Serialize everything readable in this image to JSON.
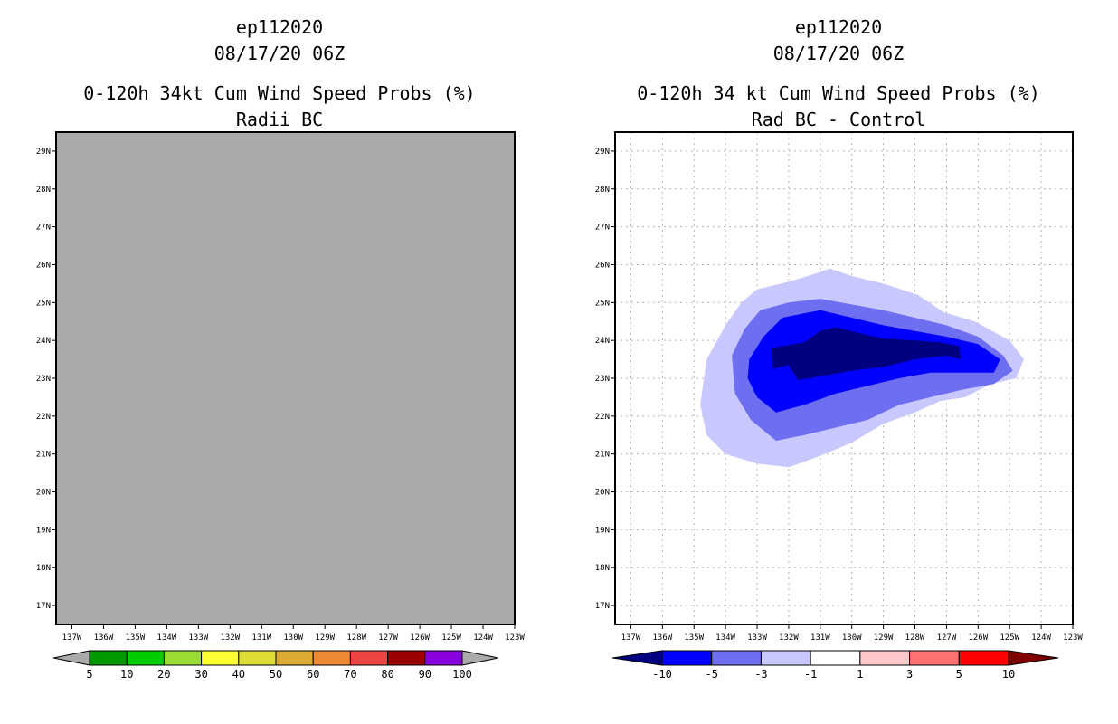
{
  "chart_data": [
    {
      "type": "heatmap",
      "storm_id": "ep112020",
      "datetime": "08/17/20 06Z",
      "title": "0-120h 34kt Cum Wind Speed Probs (%)",
      "subtitle": "Radii BC",
      "field_fill": "uniform grey (no data)",
      "field_color": "#aaaaaa",
      "x_ticks": [
        "137W",
        "136W",
        "135W",
        "134W",
        "133W",
        "132W",
        "131W",
        "130W",
        "129W",
        "128W",
        "127W",
        "126W",
        "125W",
        "124W",
        "123W"
      ],
      "y_ticks": [
        "17N",
        "18N",
        "19N",
        "20N",
        "21N",
        "22N",
        "23N",
        "24N",
        "25N",
        "26N",
        "27N",
        "28N",
        "29N"
      ],
      "xlim": [
        -137.5,
        -123
      ],
      "ylim": [
        16.5,
        29.5
      ],
      "grid": false,
      "colorbar": {
        "labels": [
          "5",
          "10",
          "20",
          "30",
          "40",
          "50",
          "60",
          "70",
          "80",
          "90",
          "100"
        ],
        "colors": [
          "#009900",
          "#00cc00",
          "#99dd33",
          "#ffff33",
          "#dddd33",
          "#ddaa33",
          "#ee8833",
          "#ee4444",
          "#990000",
          "#8800dd"
        ],
        "under_color": "#aaaaaa",
        "over_color": "#aaaaaa"
      }
    },
    {
      "type": "heatmap",
      "storm_id": "ep112020",
      "datetime": "08/17/20 06Z",
      "title": "0-120h 34 kt Cum Wind Speed Probs (%)",
      "subtitle": "Rad BC - Control",
      "x_ticks": [
        "137W",
        "136W",
        "135W",
        "134W",
        "133W",
        "132W",
        "131W",
        "130W",
        "129W",
        "128W",
        "127W",
        "126W",
        "125W",
        "124W",
        "123W"
      ],
      "y_ticks": [
        "17N",
        "18N",
        "19N",
        "20N",
        "21N",
        "22N",
        "23N",
        "24N",
        "25N",
        "26N",
        "27N",
        "28N",
        "29N"
      ],
      "xlim": [
        -137.5,
        -123
      ],
      "ylim": [
        16.5,
        29.5
      ],
      "grid": true,
      "contours": [
        {
          "level": "-1 to 1",
          "color": "#ffffff"
        },
        {
          "level": "-3 to -1",
          "color": "#c8c8ff",
          "polygon": [
            [
              -134.6,
              23.5
            ],
            [
              -134.0,
              24.4
            ],
            [
              -133.5,
              25.0
            ],
            [
              -133.0,
              25.35
            ],
            [
              -132.0,
              25.55
            ],
            [
              -131.2,
              25.75
            ],
            [
              -130.7,
              25.9
            ],
            [
              -130.0,
              25.7
            ],
            [
              -129.0,
              25.5
            ],
            [
              -127.9,
              25.2
            ],
            [
              -127.1,
              24.75
            ],
            [
              -126.1,
              24.5
            ],
            [
              -125.0,
              24.0
            ],
            [
              -124.55,
              23.5
            ],
            [
              -124.8,
              23.0
            ],
            [
              -125.6,
              22.85
            ],
            [
              -126.4,
              22.5
            ],
            [
              -127.2,
              22.4
            ],
            [
              -128.0,
              22.1
            ],
            [
              -129.0,
              21.8
            ],
            [
              -130.0,
              21.3
            ],
            [
              -131.0,
              20.95
            ],
            [
              -132.0,
              20.65
            ],
            [
              -133.0,
              20.75
            ],
            [
              -134.0,
              21.0
            ],
            [
              -134.6,
              21.5
            ],
            [
              -134.8,
              22.3
            ]
          ]
        },
        {
          "level": "-5 to -3",
          "color": "#6e6ef0",
          "polygon": [
            [
              -133.8,
              23.6
            ],
            [
              -133.4,
              24.3
            ],
            [
              -132.9,
              24.8
            ],
            [
              -132.0,
              25.0
            ],
            [
              -131.0,
              25.1
            ],
            [
              -130.0,
              24.95
            ],
            [
              -129.0,
              24.8
            ],
            [
              -128.0,
              24.6
            ],
            [
              -127.0,
              24.4
            ],
            [
              -126.0,
              24.1
            ],
            [
              -125.2,
              23.6
            ],
            [
              -124.9,
              23.2
            ],
            [
              -125.5,
              22.85
            ],
            [
              -126.5,
              22.7
            ],
            [
              -127.5,
              22.5
            ],
            [
              -128.5,
              22.3
            ],
            [
              -129.5,
              21.9
            ],
            [
              -130.5,
              21.7
            ],
            [
              -131.5,
              21.5
            ],
            [
              -132.4,
              21.35
            ],
            [
              -133.2,
              21.9
            ],
            [
              -133.7,
              22.6
            ]
          ]
        },
        {
          "level": "-10 to -5",
          "color": "#0000ff",
          "polygon": [
            [
              -133.25,
              23.5
            ],
            [
              -132.8,
              24.1
            ],
            [
              -132.2,
              24.6
            ],
            [
              -131.0,
              24.8
            ],
            [
              -130.0,
              24.6
            ],
            [
              -129.0,
              24.4
            ],
            [
              -128.0,
              24.25
            ],
            [
              -127.0,
              24.1
            ],
            [
              -126.0,
              23.9
            ],
            [
              -125.3,
              23.5
            ],
            [
              -125.5,
              23.15
            ],
            [
              -126.5,
              23.15
            ],
            [
              -127.5,
              23.15
            ],
            [
              -128.5,
              23.0
            ],
            [
              -129.5,
              22.8
            ],
            [
              -130.5,
              22.6
            ],
            [
              -131.5,
              22.3
            ],
            [
              -132.4,
              22.1
            ],
            [
              -133.0,
              22.5
            ],
            [
              -133.3,
              23.0
            ]
          ]
        },
        {
          "level": "< -10",
          "color": "#000080",
          "polygon": [
            [
              -132.55,
              23.8
            ],
            [
              -131.5,
              23.95
            ],
            [
              -131.0,
              24.25
            ],
            [
              -130.5,
              24.35
            ],
            [
              -129.8,
              24.2
            ],
            [
              -129.0,
              24.05
            ],
            [
              -128.0,
              24.0
            ],
            [
              -127.2,
              23.95
            ],
            [
              -126.6,
              23.85
            ],
            [
              -126.55,
              23.5
            ],
            [
              -127.0,
              23.6
            ],
            [
              -128.0,
              23.5
            ],
            [
              -129.0,
              23.3
            ],
            [
              -130.0,
              23.2
            ],
            [
              -131.0,
              23.05
            ],
            [
              -131.7,
              22.95
            ],
            [
              -132.0,
              23.35
            ],
            [
              -132.5,
              23.25
            ]
          ]
        }
      ],
      "colorbar": {
        "labels": [
          "-10",
          "-5",
          "-3",
          "-1",
          "1",
          "3",
          "5",
          "10"
        ],
        "colors": [
          "#0000ff",
          "#6e6ef0",
          "#c8c8ff",
          "#ffffff",
          "#ffc8c8",
          "#ff7070",
          "#ff0000"
        ],
        "under_color": "#000080",
        "over_color": "#800000"
      }
    }
  ]
}
